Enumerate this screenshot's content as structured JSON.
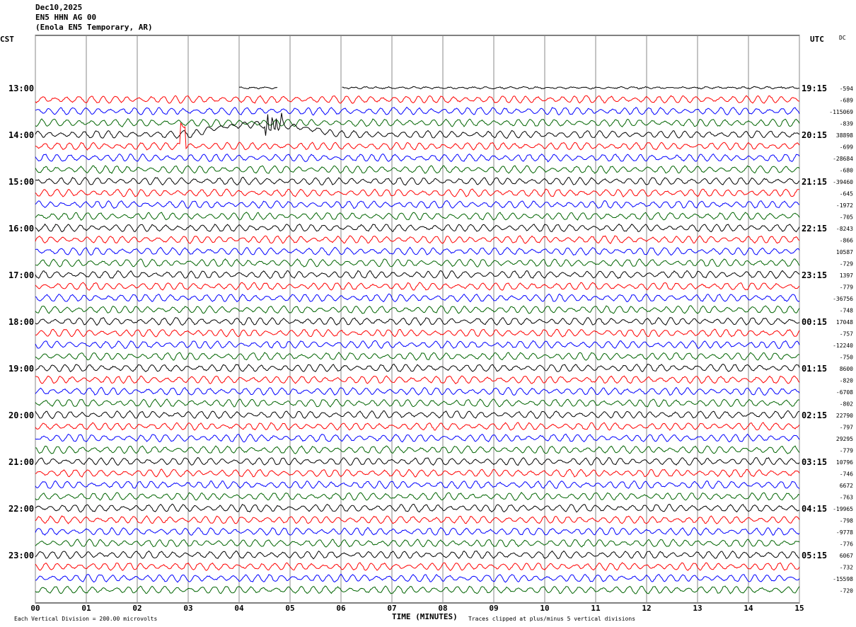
{
  "header": {
    "date": "Dec10,2025",
    "station": "EN5 HHN AG 00",
    "location": "(Enola EN5 Temporary, AR)"
  },
  "left_tz": "CST",
  "right_tz": "UTC",
  "dc_label": "DC",
  "footer": {
    "scale": "Each Vertical Division =  200.00 microvolts",
    "xlabel": "TIME (MINUTES)",
    "clip": "Traces clipped at plus/minus 5 vertical divisions"
  },
  "chart_data": {
    "type": "line",
    "title": "EN5 HHN AG 00 helicorder",
    "xlabel": "TIME (MINUTES)",
    "xlim": [
      0,
      15
    ],
    "x_ticks": [
      "00",
      "01",
      "02",
      "03",
      "04",
      "05",
      "06",
      "07",
      "08",
      "09",
      "10",
      "11",
      "12",
      "13",
      "14",
      "15"
    ],
    "trace_colors": [
      "#000000",
      "#ff0000",
      "#0000ff",
      "#006400"
    ],
    "rows_per_hour": 4,
    "left_hour_labels": [
      "13:00",
      "14:00",
      "15:00",
      "16:00",
      "17:00",
      "18:00",
      "19:00",
      "20:00",
      "21:00",
      "22:00",
      "23:00"
    ],
    "right_hour_labels": [
      "19:15",
      "20:15",
      "21:15",
      "22:15",
      "23:15",
      "00:15",
      "01:15",
      "02:15",
      "03:15",
      "04:15",
      "05:15"
    ],
    "dc_offsets": [
      "-594",
      "-689",
      "-115069",
      "-839",
      "38898",
      "-699",
      "-28684",
      "-680",
      "-39460",
      "-645",
      "-1972",
      "-705",
      "-8243",
      "-866",
      "10587",
      "-729",
      "1397",
      "-779",
      "-36756",
      "-748",
      "17048",
      "-757",
      "-12240",
      "-750",
      "8600",
      "-820",
      "-6708",
      "-802",
      "22790",
      "-797",
      "29295",
      "-779",
      "10796",
      "-746",
      "6672",
      "-763",
      "-19965",
      "-798",
      "-9778",
      "-776",
      "6067",
      "-732",
      "-15598",
      "-720"
    ]
  }
}
